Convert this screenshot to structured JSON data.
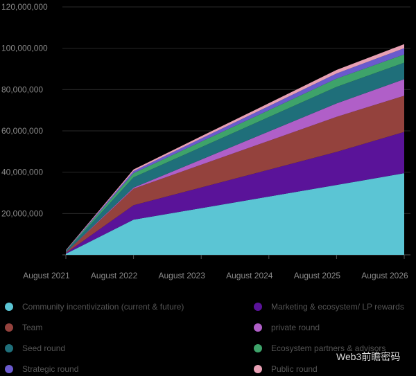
{
  "chart_data": {
    "type": "stacked_area",
    "x": [
      "August 2021",
      "August 2022",
      "August 2023",
      "August 2024",
      "August 2025",
      "August 2026"
    ],
    "ylim": [
      0,
      120000000
    ],
    "yticks": [
      {
        "value": 20000000,
        "label": "20,000,000"
      },
      {
        "value": 40000000,
        "label": "40,000,000"
      },
      {
        "value": 60000000,
        "label": "60,000,000"
      },
      {
        "value": 80000000,
        "label": "80,000,000"
      },
      {
        "value": 100000000,
        "label": "100,000,000"
      },
      {
        "value": 120000000,
        "label": "120,000,000"
      }
    ],
    "grid": true,
    "series": [
      {
        "name": "Community incentivization (current & future)",
        "color": "#5bc5d4",
        "values": [
          500000,
          17000000,
          22600000,
          28200000,
          33800000,
          39500000
        ]
      },
      {
        "name": "Marketing & ecosystem/ LP rewards",
        "color": "#5a1399",
        "values": [
          300000,
          7000000,
          10000000,
          13000000,
          16000000,
          20000000
        ]
      },
      {
        "name": "Team",
        "color": "#94423d",
        "values": [
          300000,
          8000000,
          11000000,
          14000000,
          17000000,
          17500000
        ]
      },
      {
        "name": "private round",
        "color": "#b05fc8",
        "values": [
          100000,
          500000,
          2500000,
          4500000,
          6500000,
          8000000
        ]
      },
      {
        "name": "Seed round",
        "color": "#1f6f7a",
        "values": [
          500000,
          5000000,
          6000000,
          7000000,
          8000000,
          8000000
        ]
      },
      {
        "name": "Ecosystem partners & advisors",
        "color": "#3ea36a",
        "values": [
          200000,
          2000000,
          2700000,
          3300000,
          4000000,
          4000000
        ]
      },
      {
        "name": "Strategic round",
        "color": "#6a5acd",
        "values": [
          200000,
          1000000,
          1500000,
          2000000,
          2500000,
          3000000
        ]
      },
      {
        "name": "Public round",
        "color": "#e8a0b4",
        "values": [
          200000,
          800000,
          1100000,
          1400000,
          1700000,
          2000000
        ]
      }
    ],
    "watermark": "Web3前瞻密码"
  }
}
